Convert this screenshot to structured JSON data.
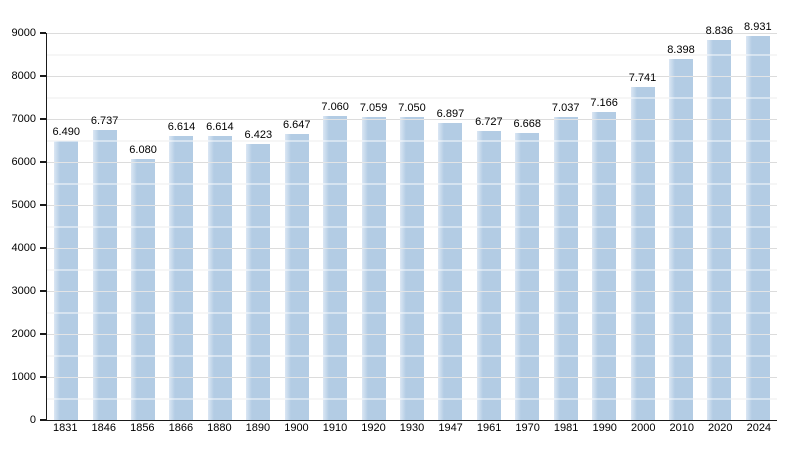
{
  "chart_data": {
    "type": "bar",
    "title": "",
    "xlabel": "",
    "ylabel": "",
    "categories": [
      "1831",
      "1846",
      "1856",
      "1866",
      "1880",
      "1890",
      "1900",
      "1910",
      "1920",
      "1930",
      "1947",
      "1961",
      "1970",
      "1981",
      "1990",
      "2000",
      "2010",
      "2020",
      "2024"
    ],
    "values": [
      6490,
      6737,
      6080,
      6614,
      6614,
      6423,
      6647,
      7060,
      7059,
      7050,
      6897,
      6727,
      6668,
      7037,
      7166,
      7741,
      8398,
      8836,
      8931
    ],
    "value_labels": [
      "6.490",
      "6.737",
      "6.080",
      "6.614",
      "6.614",
      "6.423",
      "6.647",
      "7.060",
      "7.059",
      "7.050",
      "6.897",
      "6.727",
      "6.668",
      "7.037",
      "7.166",
      "7.741",
      "8.398",
      "8.836",
      "8.931"
    ],
    "ylim": [
      0,
      9000
    ],
    "ytick_step": 1000,
    "minor_grid_step": 500,
    "y_tick_labels": [
      "0",
      "1000",
      "2000",
      "3000",
      "4000",
      "5000",
      "6000",
      "7000",
      "8000",
      "9000"
    ],
    "grid": true,
    "legend": null,
    "colors": {
      "background": "#ffffff",
      "bar_fill": "#b3cce4",
      "bar_edge_highlight": "#dbe7f4",
      "grid_minor": "#ededed",
      "grid_major": "#dcdcdc",
      "axis": "#1a1a1a",
      "text": "#000000"
    }
  }
}
